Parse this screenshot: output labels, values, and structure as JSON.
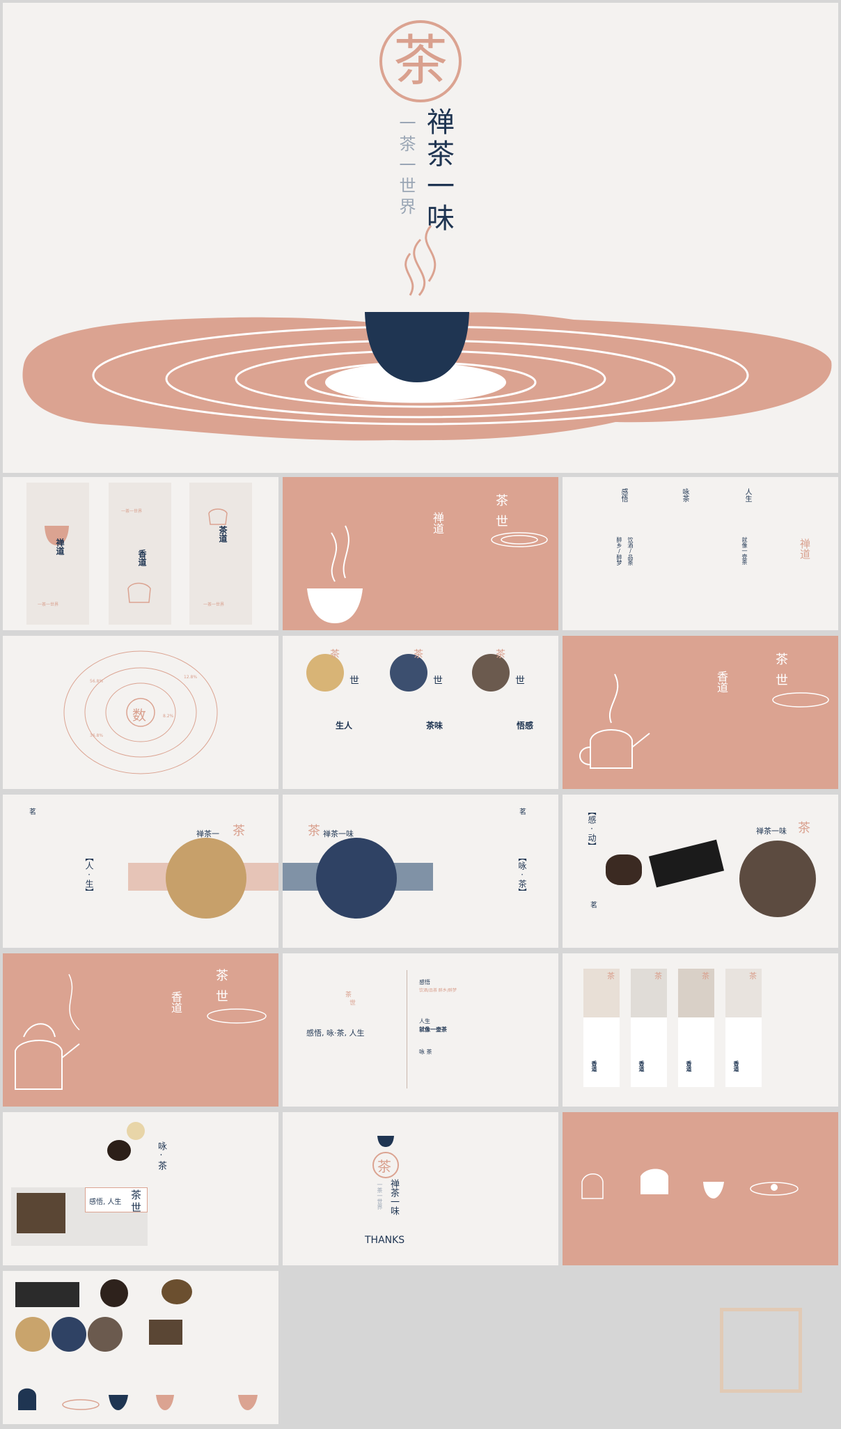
{
  "colors": {
    "accent": "#dba391",
    "navy": "#1f3552",
    "bg": "#f4f2f0",
    "frame": "#d6d6d6"
  },
  "cover": {
    "logo_char": "茶",
    "title": "禅茶一味",
    "subtitle": "一茶一世界"
  },
  "s1": {
    "panel_a_title": "禅道",
    "panel_a_sub": "一茶一世界",
    "panel_b_title": "香道",
    "panel_b_sub": "一茶一世界",
    "panel_c_title": "茶道",
    "panel_c_sub": "一茶一世界"
  },
  "s2": {
    "heading": "禅道",
    "corner_a": "茶",
    "corner_b": "世"
  },
  "s3": {
    "col1_head": "感悟",
    "col1_body": "醉乡/醉梦",
    "col1_body2": "饮酒/品茶",
    "col2_head": "咏茶",
    "col3_head": "人生",
    "col3_body": "就像一壶茶",
    "side_title": "禅道"
  },
  "s4": {
    "center_char": "数",
    "pct1": "56.8%",
    "pct2": "12.8%",
    "pct3": "8.2%",
    "pct4": "36.8%"
  },
  "s5": {
    "badge_char": "茶",
    "suffix": "世",
    "label1": "生人",
    "label2": "茶味",
    "label3": "悟感"
  },
  "s6": {
    "heading": "香道",
    "corner_a": "茶",
    "corner_b": "世"
  },
  "s7": {
    "tag": "茗",
    "title": "禅茶一",
    "badge_char": "茶",
    "vertical": "【人·生】"
  },
  "s8": {
    "tag": "茗",
    "title": "禅茶一味",
    "badge_char": "茶",
    "vertical": "【咏·茶】"
  },
  "s9": {
    "vertical": "【感·动】",
    "tag": "茗",
    "title": "禅茶一味",
    "badge_char": "茶"
  },
  "s10": {
    "heading": "香道",
    "corner_a": "茶",
    "corner_b": "世"
  },
  "s11": {
    "caption": "感悟, 咏·茶, 人生",
    "logo_a": "茶",
    "logo_b": "世",
    "right1_title": "感悟",
    "right1_body": "饮酒/品茶 醉乡/醉梦",
    "right2_title": "人生",
    "right2_body": "就像一壶茶",
    "right3_title": "咏 茶"
  },
  "s12": {
    "card_char": "茶",
    "card_label": "香道",
    "card_lines": "第一杯苦涩 第二杯醇厚 第三杯回甘"
  },
  "s13": {
    "vertical": "咏·茶",
    "banner": "感悟, 人生",
    "badge1": "茶",
    "badge2": "世"
  },
  "s14": {
    "logo_char": "茶",
    "title": "禅茶一味",
    "subtitle": "一茶一世界",
    "thanks": "THANKS"
  }
}
